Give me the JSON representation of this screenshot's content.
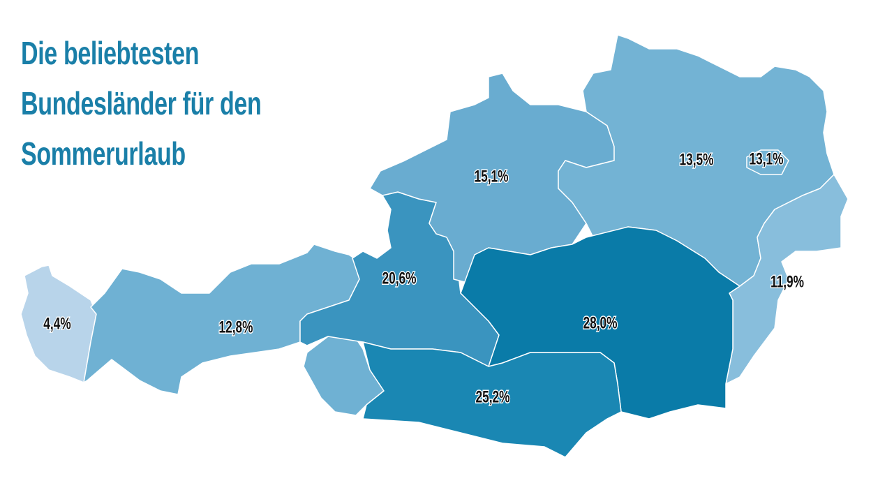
{
  "chart_data": {
    "type": "choropleth",
    "title": "Die beliebtesten Bundesländer für den Sommerurlaub",
    "values": [
      4.4,
      12.8,
      20.6,
      15.1,
      13.5,
      13.1,
      11.9,
      28.0,
      25.2
    ],
    "value_labels": [
      "4,4%",
      "12,8%",
      "20,6%",
      "15,1%",
      "13,5%",
      "13,1%",
      "11,9%",
      "28,0%",
      "25,2%"
    ],
    "colors": [
      "#b8d4ea",
      "#6fb1d3",
      "#3a94bf",
      "#69acd0",
      "#73b3d4",
      "#73b3d4",
      "#88bedc",
      "#0a7ba8",
      "#1a87b3"
    ]
  }
}
